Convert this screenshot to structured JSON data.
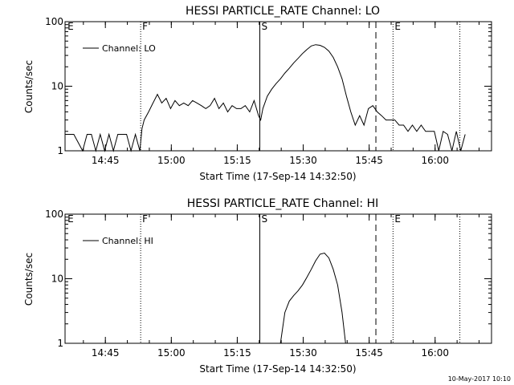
{
  "footer_date": "10-May-2017 10:10",
  "chart_data": [
    {
      "type": "line",
      "title": "HESSI PARTICLE_RATE Channel: LO",
      "xlabel": "Start Time (17-Sep-14 14:32:50)",
      "ylabel": "Counts/sec",
      "x_unit": "minutes since 14:32:50",
      "xlim": [
        3.0,
        100.0
      ],
      "ylim": [
        1,
        100
      ],
      "yscale": "log",
      "grid": false,
      "legend": "top-left",
      "legend_entries": [
        "Channel: LO"
      ],
      "xticks": [
        {
          "x": 12.17,
          "label": "14:45"
        },
        {
          "x": 27.17,
          "label": "15:00"
        },
        {
          "x": 42.17,
          "label": "15:15"
        },
        {
          "x": 57.17,
          "label": "15:30"
        },
        {
          "x": 72.17,
          "label": "15:45"
        },
        {
          "x": 87.17,
          "label": "16:00"
        }
      ],
      "yticks": [
        {
          "y": 1,
          "label": "1"
        },
        {
          "y": 10,
          "label": "10"
        },
        {
          "y": 100,
          "label": "100"
        }
      ],
      "markers": [
        {
          "x": 3.2,
          "label": "E",
          "style": "none"
        },
        {
          "x": 20.2,
          "label": "F",
          "style": "dotted"
        },
        {
          "x": 47.3,
          "label": "S",
          "style": "solid"
        },
        {
          "x": 73.7,
          "label": "",
          "style": "dashed"
        },
        {
          "x": 77.6,
          "label": "E",
          "style": "dotted"
        },
        {
          "x": 92.8,
          "label": "",
          "style": "dotted"
        }
      ],
      "series": [
        {
          "name": "Channel: LO",
          "x": [
            3.0,
            5,
            7,
            8,
            9,
            10,
            11,
            12,
            13,
            14,
            15,
            16,
            17,
            18,
            19,
            20,
            20.5,
            21,
            22,
            23,
            24,
            25,
            26,
            27,
            28,
            29,
            30,
            31,
            32,
            33,
            34,
            35,
            36,
            37,
            38,
            39,
            40,
            41,
            42,
            43,
            44,
            45,
            46,
            47,
            47.5,
            48,
            49,
            50,
            51,
            52,
            53,
            54,
            55,
            56,
            57,
            58,
            59,
            60,
            61,
            62,
            63,
            64,
            65,
            66,
            67,
            68,
            69,
            70,
            71,
            72,
            73,
            74,
            75,
            76,
            77,
            78,
            79,
            80,
            81,
            82,
            83,
            84,
            85,
            86,
            87,
            88,
            89,
            90,
            91,
            92,
            93,
            94
          ],
          "y": [
            1.8,
            1.8,
            1.0,
            1.8,
            1.8,
            1.0,
            1.8,
            1.0,
            1.8,
            1.0,
            1.8,
            1.8,
            1.8,
            1.0,
            1.8,
            1.0,
            2.2,
            3.0,
            4.0,
            5.5,
            7.5,
            5.5,
            6.5,
            4.5,
            6.0,
            5.0,
            5.5,
            5.0,
            6.0,
            5.5,
            5.0,
            4.5,
            5.0,
            6.5,
            4.5,
            5.5,
            4.0,
            5.0,
            4.5,
            4.5,
            5.0,
            4.0,
            6.0,
            3.5,
            3.0,
            4.5,
            7.0,
            9.0,
            11.0,
            13.0,
            16.0,
            19.0,
            23.0,
            27.0,
            32.0,
            37.0,
            42.0,
            44.0,
            43.0,
            40.0,
            35.0,
            28.0,
            20.0,
            13.0,
            7.0,
            4.0,
            2.5,
            3.5,
            2.5,
            4.5,
            5.0,
            4.0,
            3.5,
            3.0,
            3.0,
            3.0,
            2.5,
            2.5,
            2.0,
            2.5,
            2.0,
            2.5,
            2.0,
            2.0,
            2.0,
            1.0,
            2.0,
            1.8,
            1.0,
            2.0,
            1.0,
            1.8
          ]
        }
      ]
    },
    {
      "type": "line",
      "title": "HESSI PARTICLE_RATE Channel: HI",
      "xlabel": "Start Time (17-Sep-14 14:32:50)",
      "ylabel": "Counts/sec",
      "x_unit": "minutes since 14:32:50",
      "xlim": [
        3.0,
        100.0
      ],
      "ylim": [
        1,
        100
      ],
      "yscale": "log",
      "grid": false,
      "legend": "top-left",
      "legend_entries": [
        "Channel: HI"
      ],
      "xticks": [
        {
          "x": 12.17,
          "label": "14:45"
        },
        {
          "x": 27.17,
          "label": "15:00"
        },
        {
          "x": 42.17,
          "label": "15:15"
        },
        {
          "x": 57.17,
          "label": "15:30"
        },
        {
          "x": 72.17,
          "label": "15:45"
        },
        {
          "x": 87.17,
          "label": "16:00"
        }
      ],
      "yticks": [
        {
          "y": 1,
          "label": "1"
        },
        {
          "y": 10,
          "label": "10"
        },
        {
          "y": 100,
          "label": "100"
        }
      ],
      "markers": [
        {
          "x": 3.2,
          "label": "E",
          "style": "none"
        },
        {
          "x": 20.2,
          "label": "F",
          "style": "dotted"
        },
        {
          "x": 47.3,
          "label": "S",
          "style": "solid"
        },
        {
          "x": 73.7,
          "label": "",
          "style": "dashed"
        },
        {
          "x": 77.6,
          "label": "E",
          "style": "dotted"
        },
        {
          "x": 92.8,
          "label": "",
          "style": "dotted"
        }
      ],
      "series": [
        {
          "name": "Channel: HI",
          "x": [
            52.0,
            53,
            54,
            55,
            56,
            57,
            58,
            59,
            60,
            61,
            62,
            63,
            64,
            65,
            66,
            66.8
          ],
          "y": [
            1.0,
            3.0,
            4.5,
            5.5,
            6.5,
            8.0,
            10.5,
            14.0,
            19.0,
            24.0,
            25.0,
            21.0,
            14.0,
            8.0,
            3.0,
            1.0
          ]
        }
      ]
    }
  ]
}
